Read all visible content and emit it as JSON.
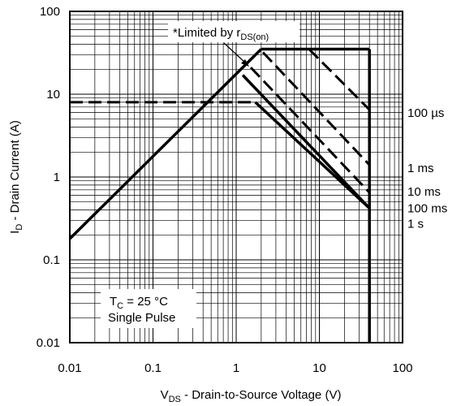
{
  "chart_data": {
    "type": "line",
    "title": "",
    "xlabel": {
      "main": "V",
      "sub": "DS",
      "rest": " - Drain-to-Source Voltage (V)"
    },
    "ylabel": {
      "main": "I",
      "sub": "D",
      "rest": " - Drain Current (A)"
    },
    "xscale": "log",
    "yscale": "log",
    "xlim": [
      0.01,
      100
    ],
    "ylim": [
      0.01,
      100
    ],
    "grid": true,
    "xticks": [
      "0.01",
      "0.1",
      "1",
      "10",
      "100"
    ],
    "yticks": [
      "0.01",
      "0.1",
      "1",
      "10",
      "100"
    ],
    "annotations": {
      "limited": {
        "main": "*Limited by r",
        "sub": "DS(on)"
      },
      "tc": {
        "main": "T",
        "sub": "C",
        "rest": " = 25 °C"
      },
      "pulse": "Single Pulse"
    },
    "series": [
      {
        "name": "",
        "style": "solid",
        "width": 3.5,
        "points": [
          [
            0.01,
            0.18
          ],
          [
            2.0,
            35
          ]
        ]
      },
      {
        "name": "",
        "style": "solid",
        "width": 3.5,
        "points": [
          [
            2.0,
            35
          ],
          [
            40,
            35
          ]
        ]
      },
      {
        "name": "",
        "style": "solid",
        "width": 3.5,
        "points": [
          [
            40,
            35
          ],
          [
            40,
            0.01
          ]
        ]
      },
      {
        "name": "",
        "style": "dashed",
        "width": 3,
        "points": [
          [
            0.01,
            8
          ],
          [
            1.7,
            8
          ]
        ]
      },
      {
        "name": "100 µs",
        "style": "dashed",
        "width": 3,
        "points": [
          [
            7.5,
            35
          ],
          [
            40,
            6.5
          ]
        ]
      },
      {
        "name": "1 ms",
        "style": "dashed",
        "width": 3,
        "points": [
          [
            2.1,
            32
          ],
          [
            40,
            1.4
          ]
        ]
      },
      {
        "name": "10 ms",
        "style": "dashed",
        "width": 3,
        "points": [
          [
            1.5,
            21
          ],
          [
            40,
            0.65
          ]
        ]
      },
      {
        "name": "100 ms",
        "style": "solid",
        "width": 3.5,
        "points": [
          [
            1.2,
            17
          ],
          [
            40,
            0.42
          ]
        ]
      },
      {
        "name": "1 s",
        "style": "solid",
        "width": 3.5,
        "points": [
          [
            1.7,
            8
          ],
          [
            40,
            0.42
          ]
        ]
      }
    ]
  }
}
